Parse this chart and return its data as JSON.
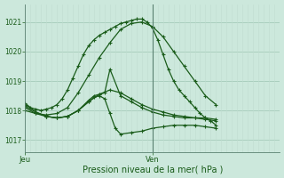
{
  "background_color": "#cce8dc",
  "grid_color_major": "#aacfbf",
  "grid_color_minor": "#c0ddd0",
  "line_color": "#1a5c1a",
  "sep_color": "#5a8070",
  "tick_label_color": "#1a5c1a",
  "xlabel": "Pression niveau de la mer( hPa )",
  "ylabel_ticks": [
    1017,
    1018,
    1019,
    1020,
    1021
  ],
  "ylim": [
    1016.6,
    1021.6
  ],
  "xlim": [
    0,
    48
  ],
  "jeu_x": 0,
  "ven_x": 24,
  "series": [
    {
      "x": [
        0,
        1,
        2,
        3,
        4,
        5,
        6,
        7,
        8,
        9,
        10,
        11,
        12,
        13,
        14,
        15,
        16,
        17,
        18,
        19,
        20,
        21,
        22,
        23,
        24,
        25,
        26,
        27,
        28,
        29,
        30,
        31,
        32,
        33,
        34,
        35,
        36
      ],
      "y": [
        1018.2,
        1018.1,
        1018.05,
        1018.0,
        1018.05,
        1018.1,
        1018.2,
        1018.4,
        1018.7,
        1019.1,
        1019.5,
        1019.9,
        1020.2,
        1020.4,
        1020.55,
        1020.65,
        1020.75,
        1020.85,
        1020.95,
        1021.0,
        1021.05,
        1021.1,
        1021.1,
        1021.0,
        1020.8,
        1020.4,
        1019.9,
        1019.4,
        1019.0,
        1018.7,
        1018.5,
        1018.3,
        1018.1,
        1017.9,
        1017.75,
        1017.65,
        1017.5
      ]
    },
    {
      "x": [
        0,
        2,
        4,
        6,
        8,
        10,
        12,
        14,
        16,
        18,
        20,
        22,
        24,
        26,
        28,
        30,
        32,
        34,
        36
      ],
      "y": [
        1018.0,
        1017.9,
        1017.85,
        1017.9,
        1018.1,
        1018.6,
        1019.2,
        1019.8,
        1020.3,
        1020.75,
        1020.95,
        1021.0,
        1020.85,
        1020.5,
        1020.0,
        1019.5,
        1019.0,
        1018.5,
        1018.2
      ]
    },
    {
      "x": [
        0,
        2,
        4,
        6,
        8,
        10,
        12,
        14,
        16,
        18,
        20,
        22,
        24,
        26,
        28,
        30,
        32,
        34,
        36
      ],
      "y": [
        1018.15,
        1017.95,
        1017.8,
        1017.75,
        1017.8,
        1018.0,
        1018.3,
        1018.55,
        1018.7,
        1018.6,
        1018.4,
        1018.2,
        1018.05,
        1017.95,
        1017.85,
        1017.8,
        1017.75,
        1017.75,
        1017.7
      ]
    },
    {
      "x": [
        0,
        2,
        4,
        6,
        8,
        10,
        12,
        13,
        14,
        15,
        16,
        18,
        20,
        22,
        24,
        26,
        28,
        30,
        32,
        34,
        36
      ],
      "y": [
        1018.1,
        1017.9,
        1017.8,
        1017.75,
        1017.8,
        1018.0,
        1018.35,
        1018.5,
        1018.55,
        1018.6,
        1019.4,
        1018.5,
        1018.3,
        1018.1,
        1017.95,
        1017.85,
        1017.8,
        1017.75,
        1017.75,
        1017.7,
        1017.65
      ]
    },
    {
      "x": [
        0,
        2,
        4,
        6,
        8,
        10,
        12,
        13,
        14,
        15,
        16,
        17,
        18,
        20,
        22,
        24,
        26,
        28,
        30,
        32,
        34,
        36
      ],
      "y": [
        1018.25,
        1017.95,
        1017.8,
        1017.75,
        1017.8,
        1018.0,
        1018.3,
        1018.45,
        1018.5,
        1018.4,
        1017.9,
        1017.4,
        1017.2,
        1017.25,
        1017.3,
        1017.4,
        1017.45,
        1017.5,
        1017.5,
        1017.5,
        1017.45,
        1017.4
      ]
    }
  ]
}
